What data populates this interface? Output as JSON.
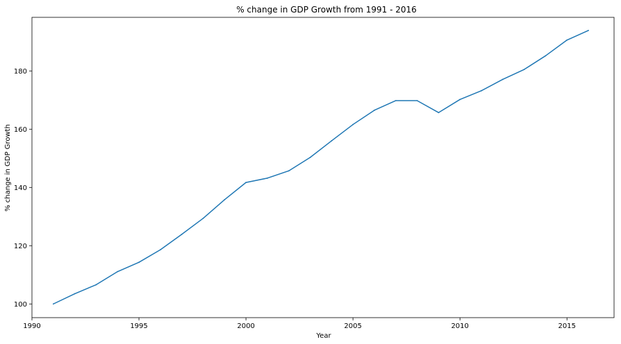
{
  "chart_data": {
    "type": "line",
    "title": "% change in GDP Growth from 1991 - 2016",
    "xlabel": "Year",
    "ylabel": "% change in GDP Growth",
    "xlim": [
      1990,
      2017.2
    ],
    "ylim": [
      95.3,
      198.4
    ],
    "xticks": [
      1990,
      1995,
      2000,
      2005,
      2010,
      2015
    ],
    "yticks": [
      100,
      120,
      140,
      160,
      180
    ],
    "grid": false,
    "series": [
      {
        "color": "#1f77b4",
        "x": [
          1991,
          1992,
          1993,
          1994,
          1995,
          1996,
          1997,
          1998,
          1999,
          2000,
          2001,
          2002,
          2003,
          2004,
          2005,
          2006,
          2007,
          2008,
          2009,
          2010,
          2011,
          2012,
          2013,
          2014,
          2015,
          2016
        ],
        "y": [
          100.0,
          103.5,
          106.6,
          111.1,
          114.3,
          118.6,
          123.9,
          129.4,
          135.8,
          141.7,
          143.2,
          145.7,
          150.3,
          156.0,
          161.6,
          166.5,
          169.8,
          169.8,
          165.7,
          170.2,
          173.2,
          177.1,
          180.5,
          185.2,
          190.6,
          193.9
        ]
      }
    ]
  }
}
